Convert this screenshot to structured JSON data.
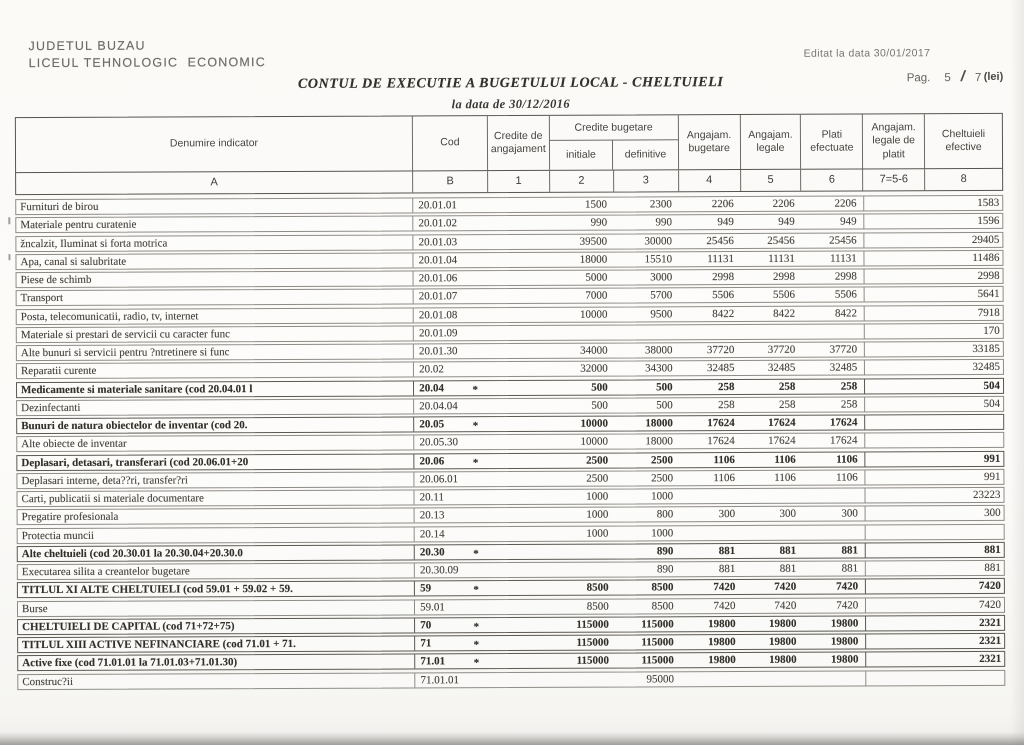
{
  "page": {
    "org_line1": "JUDETUL BUZAU",
    "org_line2": "LICEUL TEHNOLOGIC  ECONOMIC",
    "edited": "Editat la data 30/01/2017",
    "title": "CONTUL DE EXECUTIE A BUGETULUI LOCAL - CHELTUIELI",
    "subtitle": "la data de 30/12/2016",
    "pag_label": "Pag.",
    "pag_current": "5",
    "pag_sep": "/",
    "pag_total": "7",
    "unit": "(lei)"
  },
  "table": {
    "headers": {
      "denumire": "Denumire indicator",
      "cod": "Cod",
      "credite_angajament": "Credite de angajament",
      "credite_bugetare": "Credite bugetare",
      "initiale": "initiale",
      "definitive": "definitive",
      "angajam_bugetare": "Angajam. bugetare",
      "angajam_legale": "Angajam. legale",
      "plati_efectuate": "Plati efectuate",
      "angajam_legale_platit": "Angajam. legale de platit",
      "cheltuieli_efective": "Cheltuieli efective",
      "letters": [
        "A",
        "B",
        "1",
        "2",
        "3",
        "4",
        "5",
        "6",
        "7=5-6",
        "8"
      ]
    },
    "rows": [
      {
        "name": "Furnituri de birou",
        "cod": "20.01.01",
        "star": "",
        "bold": false,
        "v": [
          "",
          "1500",
          "2300",
          "2206",
          "2206",
          "2206",
          "",
          "1583"
        ]
      },
      {
        "name": "Materiale pentru curatenie",
        "cod": "20.01.02",
        "star": "",
        "bold": false,
        "v": [
          "",
          "990",
          "990",
          "949",
          "949",
          "949",
          "",
          "1596"
        ]
      },
      {
        "name": "žncalzit, Iluminat si forta motrica",
        "cod": "20.01.03",
        "star": "",
        "bold": false,
        "v": [
          "",
          "39500",
          "30000",
          "25456",
          "25456",
          "25456",
          "",
          "29405"
        ]
      },
      {
        "name": "Apa, canal si salubritate",
        "cod": "20.01.04",
        "star": "",
        "bold": false,
        "v": [
          "",
          "18000",
          "15510",
          "11131",
          "11131",
          "11131",
          "",
          "11486"
        ]
      },
      {
        "name": "Piese de schimb",
        "cod": "20.01.06",
        "star": "",
        "bold": false,
        "v": [
          "",
          "5000",
          "3000",
          "2998",
          "2998",
          "2998",
          "",
          "2998"
        ]
      },
      {
        "name": "Transport",
        "cod": "20.01.07",
        "star": "",
        "bold": false,
        "v": [
          "",
          "7000",
          "5700",
          "5506",
          "5506",
          "5506",
          "",
          "5641"
        ]
      },
      {
        "name": "Posta, telecomunicatii, radio, tv, internet",
        "cod": "20.01.08",
        "star": "",
        "bold": false,
        "v": [
          "",
          "10000",
          "9500",
          "8422",
          "8422",
          "8422",
          "",
          "7918"
        ]
      },
      {
        "name": "Materiale si prestari de servicii cu caracter func",
        "cod": "20.01.09",
        "star": "",
        "bold": false,
        "v": [
          "",
          "",
          "",
          "",
          "",
          "",
          "",
          "170"
        ]
      },
      {
        "name": "Alte bunuri si servicii pentru ?ntretinere si func",
        "cod": "20.01.30",
        "star": "",
        "bold": false,
        "v": [
          "",
          "34000",
          "38000",
          "37720",
          "37720",
          "37720",
          "",
          "33185"
        ]
      },
      {
        "name": "Reparatii curente",
        "cod": "20.02",
        "star": "",
        "bold": false,
        "v": [
          "",
          "32000",
          "34300",
          "32485",
          "32485",
          "32485",
          "",
          "32485"
        ]
      },
      {
        "name": "Medicamente si materiale sanitare  (cod 20.04.01 l",
        "cod": "20.04",
        "star": "*",
        "bold": true,
        "v": [
          "",
          "500",
          "500",
          "258",
          "258",
          "258",
          "",
          "504"
        ]
      },
      {
        "name": "Dezinfectanti",
        "cod": "20.04.04",
        "star": "",
        "bold": false,
        "v": [
          "",
          "500",
          "500",
          "258",
          "258",
          "258",
          "",
          "504"
        ]
      },
      {
        "name": "Bunuri de natura obiectelor de inventar  (cod 20.",
        "cod": "20.05",
        "star": "*",
        "bold": true,
        "v": [
          "",
          "10000",
          "18000",
          "17624",
          "17624",
          "17624",
          "",
          ""
        ]
      },
      {
        "name": "Alte obiecte de inventar",
        "cod": "20.05.30",
        "star": "",
        "bold": false,
        "v": [
          "",
          "10000",
          "18000",
          "17624",
          "17624",
          "17624",
          "",
          ""
        ]
      },
      {
        "name": "Deplasari, detasari, transferari  (cod 20.06.01+20",
        "cod": "20.06",
        "star": "*",
        "bold": true,
        "v": [
          "",
          "2500",
          "2500",
          "1106",
          "1106",
          "1106",
          "",
          "991"
        ]
      },
      {
        "name": "Deplasari interne, deta??ri, transfer?ri",
        "cod": "20.06.01",
        "star": "",
        "bold": false,
        "v": [
          "",
          "2500",
          "2500",
          "1106",
          "1106",
          "1106",
          "",
          "991"
        ]
      },
      {
        "name": "Carti, publicatii si materiale documentare",
        "cod": "20.11",
        "star": "",
        "bold": false,
        "v": [
          "",
          "1000",
          "1000",
          "",
          "",
          "",
          "",
          "23223"
        ]
      },
      {
        "name": "Pregatire profesionala",
        "cod": "20.13",
        "star": "",
        "bold": false,
        "v": [
          "",
          "1000",
          "800",
          "300",
          "300",
          "300",
          "",
          "300"
        ]
      },
      {
        "name": "Protectia muncii",
        "cod": "20.14",
        "star": "",
        "bold": false,
        "v": [
          "",
          "1000",
          "1000",
          "",
          "",
          "",
          "",
          ""
        ]
      },
      {
        "name": "Alte cheltuieli  (cod 20.30.01 la 20.30.04+20.30.0",
        "cod": "20.30",
        "star": "*",
        "bold": true,
        "v": [
          "",
          "",
          "890",
          "881",
          "881",
          "881",
          "",
          "881"
        ]
      },
      {
        "name": "Executarea silita a creantelor bugetare",
        "cod": "20.30.09",
        "star": "",
        "bold": false,
        "v": [
          "",
          "",
          "890",
          "881",
          "881",
          "881",
          "",
          "881"
        ]
      },
      {
        "name": "TITLUL XI ALTE CHELTUIELI (cod 59.01 + 59.02 + 59.",
        "cod": "59",
        "star": "*",
        "bold": true,
        "v": [
          "",
          "8500",
          "8500",
          "7420",
          "7420",
          "7420",
          "",
          "7420"
        ]
      },
      {
        "name": "Burse",
        "cod": "59.01",
        "star": "",
        "bold": false,
        "v": [
          "",
          "8500",
          "8500",
          "7420",
          "7420",
          "7420",
          "",
          "7420"
        ]
      },
      {
        "name": "CHELTUIELI DE CAPITAL  (cod 71+72+75)",
        "cod": "70",
        "star": "*",
        "bold": true,
        "v": [
          "",
          "115000",
          "115000",
          "19800",
          "19800",
          "19800",
          "",
          "2321"
        ]
      },
      {
        "name": "TITLUL XIII  ACTIVE NEFINANCIARE  (cod 71.01 + 71.",
        "cod": "71",
        "star": "*",
        "bold": true,
        "v": [
          "",
          "115000",
          "115000",
          "19800",
          "19800",
          "19800",
          "",
          "2321"
        ]
      },
      {
        "name": "Active fixe  (cod 71.01.01 la 71.01.03+71.01.30)",
        "cod": "71.01",
        "star": "*",
        "bold": true,
        "v": [
          "",
          "115000",
          "115000",
          "19800",
          "19800",
          "19800",
          "",
          "2321"
        ]
      },
      {
        "name": "Construc?ii",
        "cod": "71.01.01",
        "star": "",
        "bold": false,
        "v": [
          "",
          "",
          "95000",
          "",
          "",
          "",
          "",
          ""
        ]
      }
    ]
  }
}
